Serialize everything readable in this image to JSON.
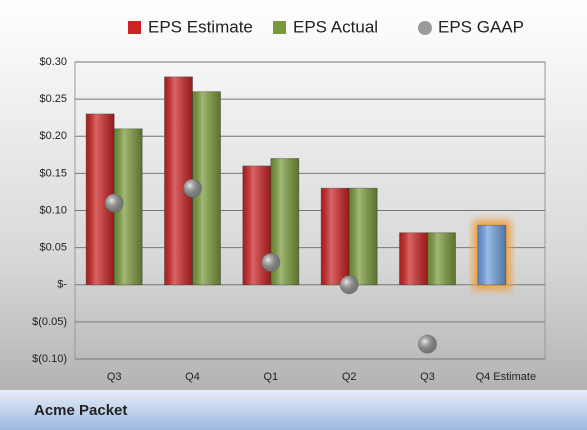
{
  "chart_data": {
    "type": "bar",
    "title": "Acme Packet",
    "categories": [
      "Q3",
      "Q4",
      "Q1",
      "Q2",
      "Q3",
      "Q4 Estimate"
    ],
    "series": [
      {
        "name": "EPS Estimate",
        "color": "#cc2222",
        "values": [
          0.23,
          0.28,
          0.16,
          0.13,
          0.07,
          0.08
        ]
      },
      {
        "name": "EPS Actual",
        "color": "#7a9a3a",
        "values": [
          0.21,
          0.26,
          0.17,
          0.13,
          0.07,
          null
        ]
      },
      {
        "name": "EPS GAAP",
        "color": "#9a9a9a",
        "marker": "circle",
        "values": [
          0.11,
          0.13,
          0.03,
          0.0,
          -0.08,
          null
        ]
      }
    ],
    "highlight": {
      "index": 5,
      "color": "#6fa0e0",
      "glow": "#f0a040"
    },
    "ylim": [
      -0.1,
      0.3
    ],
    "yticks": [
      {
        "value": 0.3,
        "label": "$0.30"
      },
      {
        "value": 0.25,
        "label": "$0.25"
      },
      {
        "value": 0.2,
        "label": "$0.20"
      },
      {
        "value": 0.15,
        "label": "$0.15"
      },
      {
        "value": 0.1,
        "label": "$0.10"
      },
      {
        "value": 0.05,
        "label": "$0.05"
      },
      {
        "value": 0,
        "label": "$-"
      },
      {
        "value": -0.05,
        "label": "$(0.05)"
      },
      {
        "value": -0.1,
        "label": "$(0.10)"
      }
    ],
    "grid": true
  }
}
